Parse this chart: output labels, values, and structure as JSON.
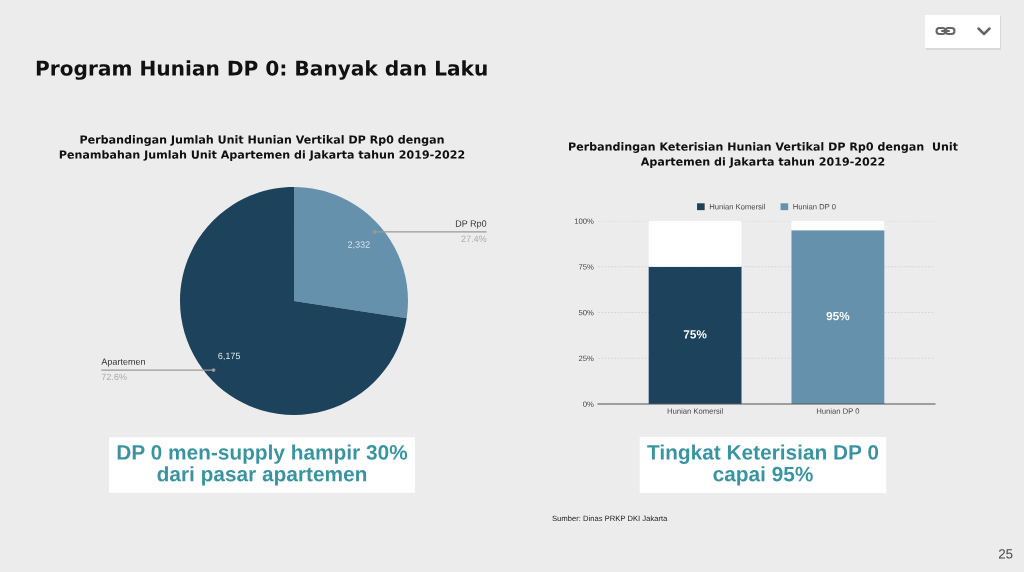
{
  "chart_data": [
    {
      "type": "other",
      "title": "Program Hunian DP 0: Banyak dan Laku",
      "annotations": [
        "25"
      ]
    },
    {
      "type": "pie",
      "title": "Perbandingan Jumlah Unit Hunian Vertikal DP Rp0 dengan\nPenambahan Jumlah Unit Apartemen di Jakarta tahun 2019-2022",
      "categories": [
        "DP Rp0",
        "Apartemen"
      ],
      "values": [
        2332,
        6175
      ],
      "colors": [
        "#6591ad",
        "#1d425b"
      ],
      "value_labels": [
        "2,332",
        "6,175"
      ],
      "annotations": [
        {
          "text": "27.4%",
          "x": "DP Rp0"
        },
        {
          "text": "72.6%",
          "x": "Apartemen"
        },
        "DP 0 men-supply hampir 30%\ndari pasar apartemen"
      ]
    },
    {
      "type": "bar",
      "title": "Perbandingan Keterisian Hunian Vertikal DP Rp0 dengan  Unit\nApartemen di Jakarta tahun 2019-2022",
      "categories": [
        "Hunian Komersil",
        "Hunian DP 0"
      ],
      "stacked": true,
      "series": [
        {
          "name": "Hunian Komersil",
          "color": "#1d425b",
          "values": [
            75,
            null
          ],
          "value_labels": [
            "75%",
            null
          ]
        },
        {
          "name": "Hunian DP 0",
          "color": "#6591ad",
          "values": [
            null,
            95
          ],
          "value_labels": [
            null,
            "95%"
          ]
        },
        {
          "color": "#ffffff",
          "values": [
            25,
            5
          ]
        }
      ],
      "ylim": [
        0,
        100
      ],
      "yticks": [
        {
          "value": 0,
          "label": "0%"
        },
        {
          "value": 25,
          "label": "25%"
        },
        {
          "value": 50,
          "label": "50%"
        },
        {
          "value": 75,
          "label": "75%"
        },
        {
          "value": 100,
          "label": "100%"
        }
      ],
      "grid": "y",
      "legend": "top",
      "annotations": [
        "Tingkat Keterisian DP 0\ncapai 95%",
        "Sumber: Dinas PRKP DKI Jakarta"
      ]
    }
  ]
}
